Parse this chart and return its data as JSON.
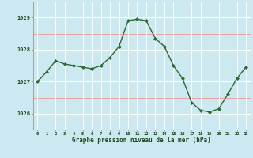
{
  "hours": [
    0,
    1,
    2,
    3,
    4,
    5,
    6,
    7,
    8,
    9,
    10,
    11,
    12,
    13,
    14,
    15,
    16,
    17,
    18,
    19,
    20,
    21,
    22,
    23
  ],
  "pressure": [
    1027.0,
    1027.3,
    1027.65,
    1027.55,
    1027.5,
    1027.45,
    1027.4,
    1027.5,
    1027.75,
    1028.1,
    1028.9,
    1028.95,
    1028.9,
    1028.35,
    1028.1,
    1027.5,
    1027.1,
    1026.35,
    1026.1,
    1026.05,
    1026.15,
    1026.6,
    1027.1,
    1027.45
  ],
  "line_color": "#2d6a2d",
  "marker_color": "#2d6a2d",
  "bg_color": "#cce8f0",
  "grid_white_color": "#ffffff",
  "grid_red_color": "#e8a0a0",
  "xlabel": "Graphe pression niveau de la mer (hPa)",
  "xlabel_color": "#1a4a1a",
  "ylabel_ticks": [
    1026,
    1027,
    1028,
    1029
  ],
  "ylim": [
    1025.5,
    1029.5
  ],
  "xlim": [
    -0.5,
    23.5
  ],
  "tick_color": "#1a4a1a",
  "spine_color": "#888888",
  "red_grid_values": [
    1025.5,
    1026.5,
    1027.5,
    1028.5,
    1029.5
  ],
  "white_grid_values": [
    1026,
    1027,
    1028,
    1029
  ]
}
